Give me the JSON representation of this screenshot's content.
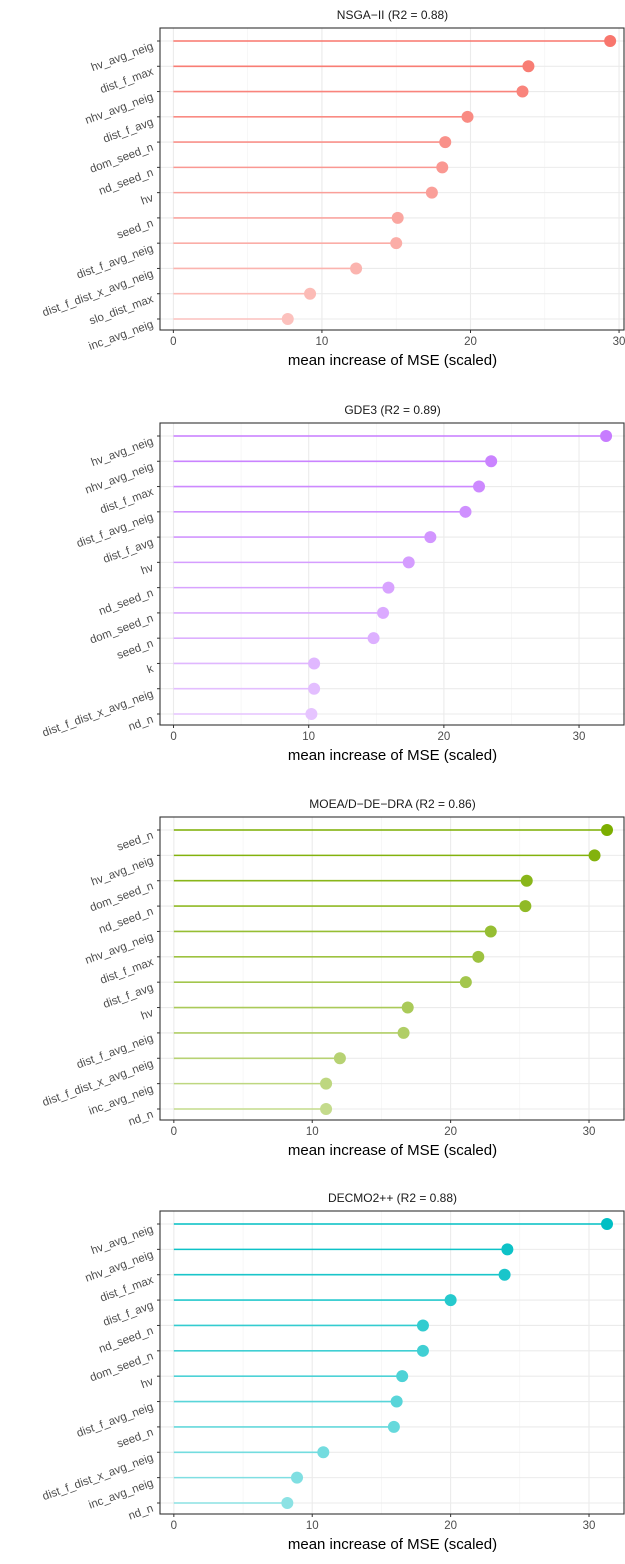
{
  "chart_data": [
    {
      "type": "lollipop",
      "title": "NSGA−II (R2 = 0.88)",
      "xlabel": "mean increase of MSE (scaled)",
      "xlim": [
        -0.9,
        30.4
      ],
      "xticks": [
        0,
        10,
        20,
        30
      ],
      "grid": true,
      "color": "#F8766D",
      "categories": [
        "hv_avg_neig",
        "dist_f_max",
        "nhv_avg_neig",
        "dist_f_avg",
        "dom_seed_n",
        "nd_seed_n",
        "hv",
        "seed_n",
        "dist_f_avg_neig",
        "dist_f_dist_x_avg_neig",
        "slo_dist_max",
        "inc_avg_neig"
      ],
      "values": [
        29.4,
        23.9,
        23.5,
        19.8,
        18.3,
        18.1,
        17.4,
        15.1,
        15.0,
        12.3,
        9.2,
        7.7
      ]
    },
    {
      "type": "lollipop",
      "title": "GDE3 (R2 = 0.89)",
      "xlabel": "mean increase of MSE (scaled)",
      "xlim": [
        -1.0,
        33.4
      ],
      "xticks": [
        0,
        10,
        20,
        30
      ],
      "grid": true,
      "color": "#C77CFF",
      "categories": [
        "hv_avg_neig",
        "nhv_avg_neig",
        "dist_f_max",
        "dist_f_avg_neig",
        "dist_f_avg",
        "hv",
        "nd_seed_n",
        "dom_seed_n",
        "seed_n",
        "k",
        "dist_f_dist_x_avg_neig",
        "nd_n"
      ],
      "values": [
        32.0,
        23.5,
        22.6,
        21.6,
        19.0,
        17.4,
        15.9,
        15.5,
        14.8,
        10.4,
        10.4,
        10.2
      ]
    },
    {
      "type": "lollipop",
      "title": "MOEA/D−DE−DRA (R2 = 0.86)",
      "xlabel": "mean increase of MSE (scaled)",
      "xlim": [
        -1.0,
        32.6
      ],
      "xticks": [
        0,
        10,
        20,
        30
      ],
      "grid": true,
      "color": "#7CAE00",
      "categories": [
        "seed_n",
        "hv_avg_neig",
        "dom_seed_n",
        "nd_seed_n",
        "nhv_avg_neig",
        "dist_f_max",
        "dist_f_avg",
        "hv",
        "dist_f_avg_neig",
        "dist_f_dist_x_avg_neig",
        "inc_avg_neig",
        "nd_n"
      ],
      "values": [
        31.3,
        30.4,
        25.5,
        25.4,
        22.9,
        22.0,
        21.1,
        16.9,
        16.6,
        12.0,
        11.0,
        11.0
      ]
    },
    {
      "type": "lollipop",
      "title": "DECMO2++ (R2 = 0.88)",
      "xlabel": "mean increase of MSE (scaled)",
      "xlim": [
        -1.0,
        32.6
      ],
      "xticks": [
        0,
        10,
        20,
        30
      ],
      "grid": true,
      "color": "#00BFC4",
      "categories": [
        "hv_avg_neig",
        "nhv_avg_neig",
        "dist_f_max",
        "dist_f_avg",
        "nd_seed_n",
        "dom_seed_n",
        "hv",
        "dist_f_avg_neig",
        "seed_n",
        "dist_f_dist_x_avg_neig",
        "inc_avg_neig",
        "nd_n"
      ],
      "values": [
        31.3,
        24.1,
        23.9,
        20.0,
        18.0,
        18.0,
        16.5,
        16.1,
        15.9,
        10.8,
        8.9,
        8.2
      ]
    }
  ]
}
